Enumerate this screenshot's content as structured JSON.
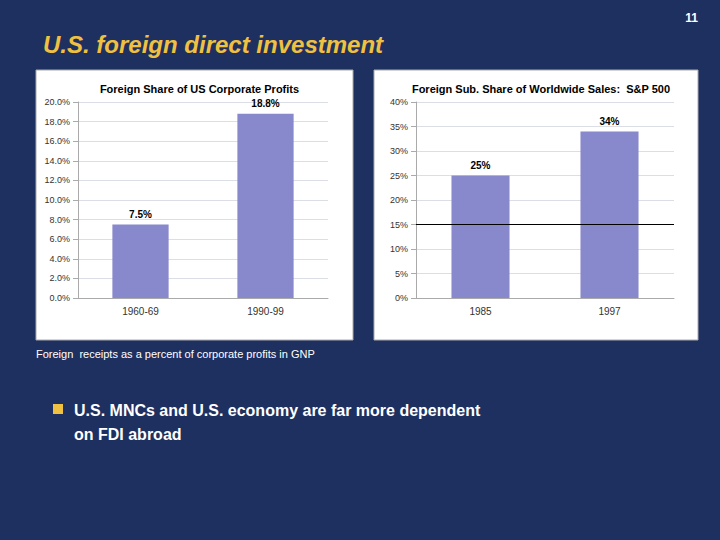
{
  "title": "U.S. foreign direct investment",
  "annotations": [
    "11",
    "Foreign  receipts as a percent of corporate profits in GNP",
    "U.S. MNCs and U.S. economy are far more dependent\non FDI abroad"
  ],
  "chart_data": [
    {
      "type": "bar",
      "title": "Foreign Share of US Corporate Profits",
      "categories": [
        "1960-69",
        "1990-99"
      ],
      "values": [
        0.075,
        0.188
      ],
      "value_labels": [
        "7.5%",
        "18.8%"
      ],
      "data_labels": true,
      "color": "#8888cc",
      "ylim": [
        0,
        0.2
      ],
      "yticks": [
        {
          "value": 0.0,
          "label": "0.0%"
        },
        {
          "value": 0.02,
          "label": "2.0%"
        },
        {
          "value": 0.04,
          "label": "4.0%"
        },
        {
          "value": 0.06,
          "label": "6.0%"
        },
        {
          "value": 0.08,
          "label": "8.0%"
        },
        {
          "value": 0.1,
          "label": "10.0%"
        },
        {
          "value": 0.12,
          "label": "12.0%"
        },
        {
          "value": 0.14,
          "label": "14.0%"
        },
        {
          "value": 0.16,
          "label": "16.0%"
        },
        {
          "value": 0.18,
          "label": "18.0%"
        },
        {
          "value": 0.2,
          "label": "20.0%"
        }
      ],
      "grid": true
    },
    {
      "type": "bar",
      "title": "Foreign Sub. Share of Worldwide Sales:  S&P 500",
      "categories": [
        "1985",
        "1997"
      ],
      "values": [
        25,
        34
      ],
      "value_labels": [
        "25%",
        "34%"
      ],
      "data_labels": true,
      "color": "#8888cc",
      "ylim": [
        0,
        40
      ],
      "yticks": [
        {
          "value": 0,
          "label": "0%"
        },
        {
          "value": 5,
          "label": "5%"
        },
        {
          "value": 10,
          "label": "10%"
        },
        {
          "value": 15,
          "label": "15%"
        },
        {
          "value": 20,
          "label": "20%"
        },
        {
          "value": 25,
          "label": "25%"
        },
        {
          "value": 30,
          "label": "30%"
        },
        {
          "value": 35,
          "label": "35%"
        },
        {
          "value": 40,
          "label": "40%"
        }
      ],
      "hline": 15,
      "grid": true
    }
  ]
}
